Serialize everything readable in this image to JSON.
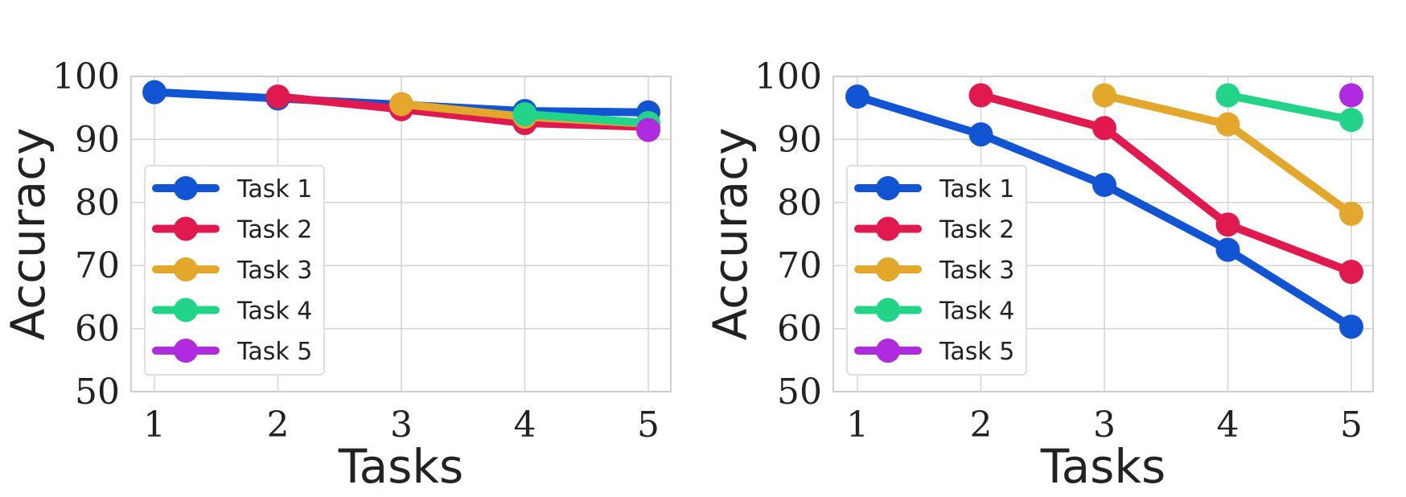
{
  "chart_data": [
    {
      "type": "line",
      "xlabel": "Tasks",
      "ylabel": "Accuracy",
      "xlim": [
        1,
        5
      ],
      "ylim": [
        50,
        100
      ],
      "x_ticks": [
        1,
        2,
        3,
        4,
        5
      ],
      "y_ticks": [
        50,
        60,
        70,
        80,
        90,
        100
      ],
      "grid": true,
      "legend_position": "lower-left",
      "series": [
        {
          "name": "Task 1",
          "color": "#1155d4",
          "x": [
            1,
            2,
            3,
            4,
            5
          ],
          "values": [
            97.5,
            96.5,
            95.5,
            94.5,
            94.3
          ]
        },
        {
          "name": "Task 2",
          "color": "#e0194e",
          "x": [
            2,
            3,
            4,
            5
          ],
          "values": [
            96.8,
            94.8,
            92.6,
            92.0
          ]
        },
        {
          "name": "Task 3",
          "color": "#e3a72b",
          "x": [
            3,
            4,
            5
          ],
          "values": [
            95.6,
            93.6,
            92.5
          ]
        },
        {
          "name": "Task 4",
          "color": "#22d487",
          "x": [
            4,
            5
          ],
          "values": [
            94.0,
            92.6
          ]
        },
        {
          "name": "Task 5",
          "color": "#b02ae0",
          "x": [
            5
          ],
          "values": [
            91.5
          ]
        }
      ]
    },
    {
      "type": "line",
      "xlabel": "Tasks",
      "ylabel": "Accuracy",
      "xlim": [
        1,
        5
      ],
      "ylim": [
        50,
        100
      ],
      "x_ticks": [
        1,
        2,
        3,
        4,
        5
      ],
      "y_ticks": [
        50,
        60,
        70,
        80,
        90,
        100
      ],
      "grid": true,
      "legend_position": "lower-left",
      "series": [
        {
          "name": "Task 1",
          "color": "#1155d4",
          "x": [
            1,
            2,
            3,
            4,
            5
          ],
          "values": [
            96.8,
            90.8,
            82.8,
            72.5,
            60.3
          ]
        },
        {
          "name": "Task 2",
          "color": "#e0194e",
          "x": [
            2,
            3,
            4,
            5
          ],
          "values": [
            97.0,
            91.8,
            76.5,
            69.0
          ]
        },
        {
          "name": "Task 3",
          "color": "#e3a72b",
          "x": [
            3,
            4,
            5
          ],
          "values": [
            97.0,
            92.4,
            78.2
          ]
        },
        {
          "name": "Task 4",
          "color": "#22d487",
          "x": [
            4,
            5
          ],
          "values": [
            97.0,
            93.1
          ]
        },
        {
          "name": "Task 5",
          "color": "#b02ae0",
          "x": [
            5
          ],
          "values": [
            97.0
          ]
        }
      ]
    }
  ]
}
